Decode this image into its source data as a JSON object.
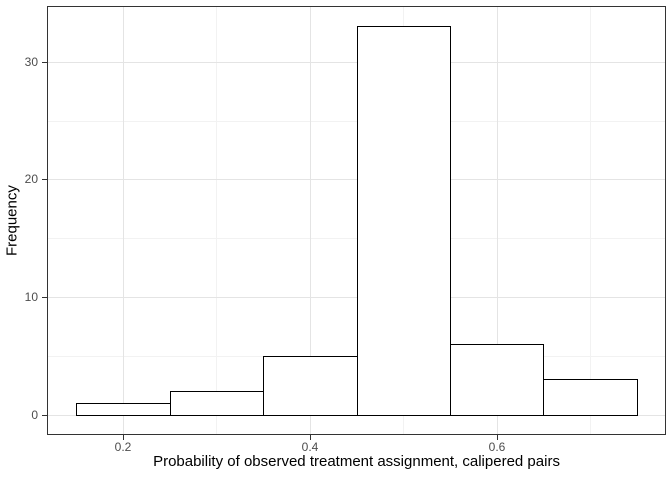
{
  "figure": {
    "background": "#ffffff"
  },
  "chart_data": {
    "type": "bar",
    "subtype": "histogram",
    "title": "",
    "xlabel": "Probability of observed treatment assignment, calipered pairs",
    "ylabel": "Frequency",
    "bin_edges": [
      0.15,
      0.25,
      0.35,
      0.45,
      0.55,
      0.65,
      0.75
    ],
    "values": [
      1,
      2,
      5,
      33,
      6,
      3
    ],
    "xlim": [
      0.12,
      0.78
    ],
    "ylim": [
      -1.65,
      34.65
    ],
    "x_ticks": {
      "values": [
        0.2,
        0.4,
        0.6
      ],
      "labels": [
        "0.2",
        "0.4",
        "0.6"
      ]
    },
    "y_ticks": {
      "values": [
        0,
        10,
        20,
        30
      ],
      "labels": [
        "0",
        "10",
        "20",
        "30"
      ]
    },
    "x_minor_gridlines": [
      0.3,
      0.5,
      0.7
    ],
    "y_minor_gridlines": [
      5,
      15,
      25
    ],
    "grid": true,
    "legend_position": "none",
    "colors": {
      "bar_fill": "#ffffff",
      "bar_stroke": "#000000",
      "panel_background": "#ffffff",
      "panel_border": "#333333",
      "grid_major": "#e4e4e4",
      "grid_minor": "#f2f2f2",
      "tick_mark": "#333333",
      "tick_label": "#4d4d4d",
      "axis_title": "#000000"
    }
  }
}
